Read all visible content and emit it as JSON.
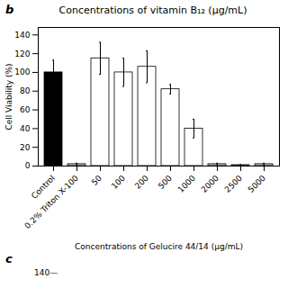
{
  "chart_data": {
    "type": "bar",
    "title": "Concentrations of vitamin B₁₂ (μg/mL)",
    "xlabel": "Concentrations of Gelucire 44/14 (μg/mL)",
    "ylabel": "Cell Viability (%)",
    "annotations": [
      "b",
      "c",
      "140—"
    ],
    "categories": [
      "Control",
      "0.2% Triton X-100",
      "50",
      "100",
      "200",
      "500",
      "1000",
      "2000",
      "2500",
      "5000"
    ],
    "values": [
      100,
      2,
      115,
      100,
      106,
      82,
      40,
      2,
      1,
      2
    ],
    "errors": [
      13,
      1,
      17,
      15,
      17,
      5,
      10,
      1,
      0.5,
      1
    ],
    "colors": [
      "#000000",
      "#cccccc",
      "#ffffff",
      "#ffffff",
      "#ffffff",
      "#ffffff",
      "#ffffff",
      "#cccccc",
      "#cccccc",
      "#cccccc"
    ],
    "ylim": [
      0,
      148
    ],
    "yticks": [
      0,
      20,
      40,
      60,
      80,
      100,
      120,
      140
    ],
    "grid": false
  }
}
